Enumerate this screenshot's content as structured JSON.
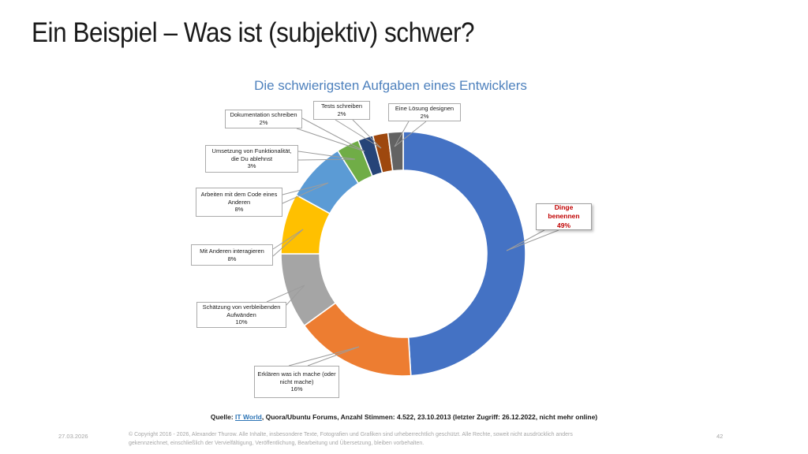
{
  "slide": {
    "title": "Ein Beispiel – Was ist (subjektiv) schwer?"
  },
  "chart_data": {
    "type": "pie",
    "subtype": "donut",
    "title": "Die schwierigsten Aufgaben eines Entwicklers",
    "unit": "%",
    "start_angle_deg": 0,
    "direction": "clockwise",
    "title_color": "#4E81BD",
    "highlight_color": "#C00000",
    "series": [
      {
        "name": "Dinge benennen",
        "value": 49,
        "pct_label": "49%",
        "color": "#4472C4"
      },
      {
        "name": "Erklären was ich mache (oder nicht mache)",
        "value": 16,
        "pct_label": "16%",
        "color": "#ED7D31"
      },
      {
        "name": "Schätzung von verbleibenden Aufwänden",
        "value": 10,
        "pct_label": "10%",
        "color": "#A5A5A5"
      },
      {
        "name": "Mit Anderen interagieren",
        "value": 8,
        "pct_label": "8%",
        "color": "#FFC000"
      },
      {
        "name": "Arbeiten mit dem Code eines Anderen",
        "value": 8,
        "pct_label": "8%",
        "color": "#5B9BD5"
      },
      {
        "name": "Umsetzung von Funktionalität, die Du ablehnst",
        "value": 3,
        "pct_label": "3%",
        "color": "#70AD47"
      },
      {
        "name": "Dokumentation schreiben",
        "value": 2,
        "pct_label": "2%",
        "color": "#264478"
      },
      {
        "name": "Tests schreiben",
        "value": 2,
        "pct_label": "2%",
        "color": "#9E480E"
      },
      {
        "name": "Eine Lösung designen",
        "value": 2,
        "pct_label": "2%",
        "color": "#636363"
      }
    ]
  },
  "source": {
    "prefix": "Quelle: ",
    "link_text": "IT World",
    "suffix": ", Quora/Ubuntu Forums, Anzahl Stimmen: 4.522, 23.10.2013 (letzter Zugriff: 26.12.2022, nicht mehr online)"
  },
  "footer": {
    "date": "27.03.2026",
    "copyright_line1": "© Copyright 2016 - 2026, Alexander Thurow. Alle Inhalte, insbesondere Texte, Fotografien und Grafiken sind urheberrechtlich geschützt. Alle Rechte, soweit nicht ausdrücklich anders",
    "copyright_line2": "gekennzeichnet, einschließlich der Vervielfältigung, Veröffentlichung, Bearbeitung und Übersetzung, bleiben vorbehalten.",
    "page_number": "42"
  }
}
